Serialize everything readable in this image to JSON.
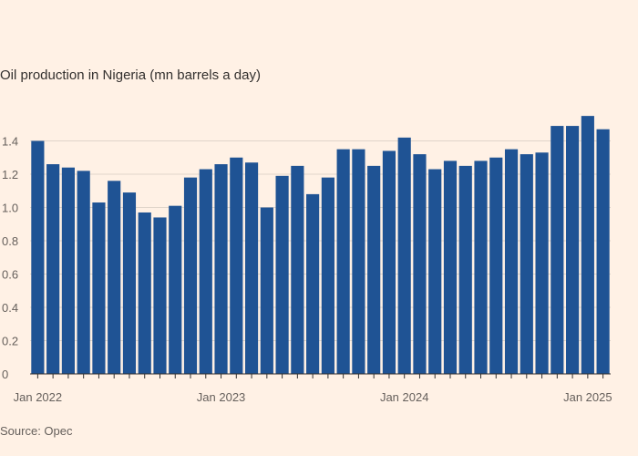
{
  "chart_data": {
    "type": "bar",
    "title": "Oil production in Nigeria (mn barrels a day)",
    "source": "Source: Opec",
    "xlabel": "",
    "ylabel": "",
    "ylim": [
      0,
      1.6
    ],
    "grid": true,
    "bar_color": "#1f5394",
    "y_ticks": [
      0,
      0.2,
      0.4,
      0.6,
      0.8,
      1.0,
      1.2,
      1.4
    ],
    "y_tick_labels": [
      "0",
      "0.2",
      "0.4",
      "0.6",
      "0.8",
      "1.0",
      "1.2",
      "1.4"
    ],
    "x_tick_labels": [
      {
        "index": 0,
        "label": "Jan 2022"
      },
      {
        "index": 12,
        "label": "Jan 2023"
      },
      {
        "index": 24,
        "label": "Jan 2024"
      },
      {
        "index": 36,
        "label": "Jan 2025"
      }
    ],
    "categories": [
      "2022-01",
      "2022-02",
      "2022-03",
      "2022-04",
      "2022-05",
      "2022-06",
      "2022-07",
      "2022-08",
      "2022-09",
      "2022-10",
      "2022-11",
      "2022-12",
      "2023-01",
      "2023-02",
      "2023-03",
      "2023-04",
      "2023-05",
      "2023-06",
      "2023-07",
      "2023-08",
      "2023-09",
      "2023-10",
      "2023-11",
      "2023-12",
      "2024-01",
      "2024-02",
      "2024-03",
      "2024-04",
      "2024-05",
      "2024-06",
      "2024-07",
      "2024-08",
      "2024-09",
      "2024-10",
      "2024-11",
      "2024-12",
      "2025-01",
      "2025-02"
    ],
    "values": [
      1.4,
      1.26,
      1.24,
      1.22,
      1.03,
      1.16,
      1.09,
      0.97,
      0.94,
      1.01,
      1.18,
      1.23,
      1.26,
      1.3,
      1.27,
      1.0,
      1.19,
      1.25,
      1.08,
      1.18,
      1.35,
      1.35,
      1.25,
      1.34,
      1.42,
      1.32,
      1.23,
      1.28,
      1.25,
      1.28,
      1.3,
      1.35,
      1.32,
      1.33,
      1.49,
      1.49,
      1.55,
      1.47
    ]
  }
}
